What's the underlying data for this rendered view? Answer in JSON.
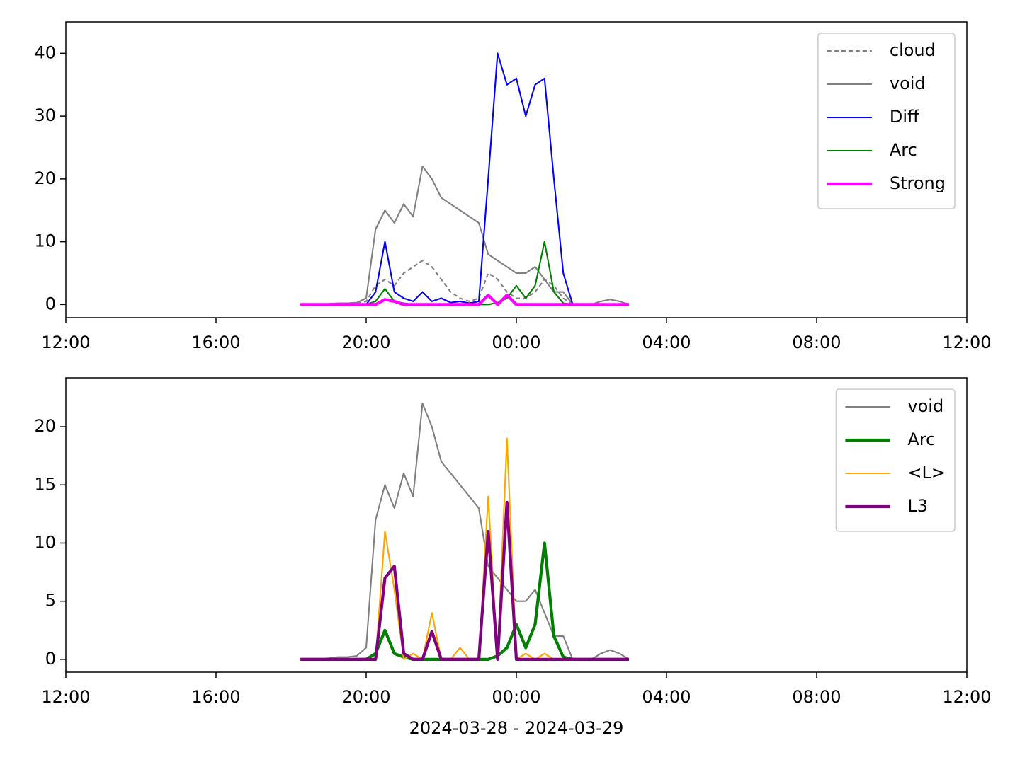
{
  "chart_data": [
    {
      "type": "line",
      "x": [
        "2024-03-28T18:15",
        "2024-03-28T18:30",
        "2024-03-28T18:45",
        "2024-03-28T19:00",
        "2024-03-28T19:15",
        "2024-03-28T19:30",
        "2024-03-28T19:45",
        "2024-03-28T20:00",
        "2024-03-28T20:15",
        "2024-03-28T20:30",
        "2024-03-28T20:45",
        "2024-03-28T21:00",
        "2024-03-28T21:15",
        "2024-03-28T21:30",
        "2024-03-28T21:45",
        "2024-03-28T22:00",
        "2024-03-28T22:15",
        "2024-03-28T22:30",
        "2024-03-28T22:45",
        "2024-03-28T23:00",
        "2024-03-28T23:15",
        "2024-03-28T23:30",
        "2024-03-28T23:45",
        "2024-03-29T00:00",
        "2024-03-29T00:15",
        "2024-03-29T00:30",
        "2024-03-29T00:45",
        "2024-03-29T01:00",
        "2024-03-29T01:15",
        "2024-03-29T01:30",
        "2024-03-29T01:45",
        "2024-03-29T02:00",
        "2024-03-29T02:15",
        "2024-03-29T02:30",
        "2024-03-29T02:45",
        "2024-03-29T03:00"
      ],
      "series": [
        {
          "name": "cloud",
          "color": "#808080",
          "linestyle": "dashed",
          "linewidth": 1.5,
          "values": [
            0,
            0,
            0,
            0,
            0,
            0.1,
            0.2,
            0.5,
            3,
            4,
            3,
            5,
            6,
            7,
            6,
            4,
            2,
            1,
            0.5,
            1,
            5,
            4,
            2,
            1,
            1,
            2,
            4,
            3,
            1,
            0,
            0,
            0,
            0,
            0,
            0,
            0
          ]
        },
        {
          "name": "void",
          "color": "#808080",
          "linestyle": "solid",
          "linewidth": 1.5,
          "values": [
            0,
            0,
            0,
            0.1,
            0.2,
            0.2,
            0.3,
            1,
            12,
            15,
            13,
            16,
            14,
            22,
            20,
            17,
            16,
            15,
            14,
            13,
            8,
            7,
            6,
            5,
            5,
            6,
            4,
            2,
            2,
            0,
            0,
            0,
            0.5,
            0.8,
            0.5,
            0
          ]
        },
        {
          "name": "Diff",
          "color": "#0000ff",
          "linestyle": "solid",
          "linewidth": 1.5,
          "values": [
            0,
            0,
            0,
            0,
            0,
            0,
            0,
            0,
            2,
            10,
            2,
            1,
            0.5,
            2,
            0.5,
            1,
            0.3,
            0.5,
            0.2,
            0.5,
            20,
            40,
            35,
            36,
            30,
            35,
            36,
            20,
            5,
            0,
            0,
            0,
            0,
            0,
            0,
            0
          ]
        },
        {
          "name": "Arc",
          "color": "#008000",
          "linestyle": "solid",
          "linewidth": 1.5,
          "values": [
            0,
            0,
            0,
            0,
            0,
            0,
            0,
            0,
            0.5,
            2.5,
            0.5,
            0.2,
            0,
            0,
            0,
            0,
            0,
            0,
            0,
            0,
            0,
            0.3,
            1,
            3,
            1,
            3,
            10,
            2,
            0.2,
            0,
            0,
            0,
            0,
            0,
            0,
            0
          ]
        },
        {
          "name": "Strong",
          "color": "#ff00ff",
          "linestyle": "solid",
          "linewidth": 3,
          "values": [
            0,
            0,
            0,
            0,
            0,
            0,
            0,
            0,
            0,
            0.8,
            0.5,
            0,
            0,
            0,
            0,
            0,
            0,
            0,
            0,
            0,
            1.5,
            0,
            1.5,
            0,
            0,
            0,
            0,
            0,
            0,
            0,
            0,
            0,
            0,
            0,
            0,
            0
          ]
        }
      ],
      "xlim": [
        "2024-03-28T12:00",
        "2024-03-29T12:00"
      ],
      "xticks": [
        {
          "value": "2024-03-28T12:00",
          "label": "12:00"
        },
        {
          "value": "2024-03-28T16:00",
          "label": "16:00"
        },
        {
          "value": "2024-03-28T20:00",
          "label": "20:00"
        },
        {
          "value": "2024-03-29T00:00",
          "label": "00:00"
        },
        {
          "value": "2024-03-29T04:00",
          "label": "04:00"
        },
        {
          "value": "2024-03-29T08:00",
          "label": "08:00"
        },
        {
          "value": "2024-03-29T12:00",
          "label": "12:00"
        }
      ],
      "ylim": [
        -2.1,
        45
      ],
      "yticks": [
        0,
        10,
        20,
        30,
        40
      ],
      "legend": "upper right",
      "grid": false
    },
    {
      "type": "line",
      "x": [
        "2024-03-28T18:15",
        "2024-03-28T18:30",
        "2024-03-28T18:45",
        "2024-03-28T19:00",
        "2024-03-28T19:15",
        "2024-03-28T19:30",
        "2024-03-28T19:45",
        "2024-03-28T20:00",
        "2024-03-28T20:15",
        "2024-03-28T20:30",
        "2024-03-28T20:45",
        "2024-03-28T21:00",
        "2024-03-28T21:15",
        "2024-03-28T21:30",
        "2024-03-28T21:45",
        "2024-03-28T22:00",
        "2024-03-28T22:15",
        "2024-03-28T22:30",
        "2024-03-28T22:45",
        "2024-03-28T23:00",
        "2024-03-28T23:15",
        "2024-03-28T23:30",
        "2024-03-28T23:45",
        "2024-03-29T00:00",
        "2024-03-29T00:15",
        "2024-03-29T00:30",
        "2024-03-29T00:45",
        "2024-03-29T01:00",
        "2024-03-29T01:15",
        "2024-03-29T01:30",
        "2024-03-29T01:45",
        "2024-03-29T02:00",
        "2024-03-29T02:15",
        "2024-03-29T02:30",
        "2024-03-29T02:45",
        "2024-03-29T03:00"
      ],
      "series": [
        {
          "name": "void",
          "color": "#808080",
          "linestyle": "solid",
          "linewidth": 1.5,
          "values": [
            0,
            0,
            0,
            0.1,
            0.2,
            0.2,
            0.3,
            1,
            12,
            15,
            13,
            16,
            14,
            22,
            20,
            17,
            16,
            15,
            14,
            13,
            8,
            7,
            6,
            5,
            5,
            6,
            4,
            2,
            2,
            0,
            0,
            0,
            0.5,
            0.8,
            0.5,
            0
          ]
        },
        {
          "name": "Arc",
          "color": "#008000",
          "linestyle": "solid",
          "linewidth": 3,
          "values": [
            0,
            0,
            0,
            0,
            0,
            0,
            0,
            0,
            0.5,
            2.5,
            0.5,
            0.2,
            0,
            0,
            0,
            0,
            0,
            0,
            0,
            0,
            0,
            0.3,
            1,
            3,
            1,
            3,
            10,
            2,
            0.2,
            0,
            0,
            0,
            0,
            0,
            0,
            0
          ]
        },
        {
          "name": "<L>",
          "color": "#ffa500",
          "linestyle": "solid",
          "linewidth": 1.5,
          "values": [
            0,
            0,
            0,
            0,
            0,
            0,
            0,
            0,
            0,
            11,
            6,
            0,
            0.5,
            0,
            4,
            0,
            0,
            1,
            0,
            0,
            14,
            0,
            19,
            0,
            0.5,
            0,
            0.5,
            0,
            0,
            0,
            0,
            0,
            0,
            0,
            0,
            0
          ]
        },
        {
          "name": "L3",
          "color": "#800080",
          "linestyle": "solid",
          "linewidth": 3,
          "values": [
            0,
            0,
            0,
            0,
            0,
            0,
            0,
            0,
            0,
            7,
            8,
            0.5,
            0,
            0,
            2.4,
            0,
            0,
            0,
            0,
            0,
            11,
            0,
            13.5,
            0,
            0,
            0,
            0,
            0,
            0,
            0,
            0,
            0,
            0,
            0,
            0,
            0
          ]
        }
      ],
      "xlim": [
        "2024-03-28T12:00",
        "2024-03-29T12:00"
      ],
      "xticks": [
        {
          "value": "2024-03-28T12:00",
          "label": "12:00"
        },
        {
          "value": "2024-03-28T16:00",
          "label": "16:00"
        },
        {
          "value": "2024-03-28T20:00",
          "label": "20:00"
        },
        {
          "value": "2024-03-29T00:00",
          "label": "00:00"
        },
        {
          "value": "2024-03-29T04:00",
          "label": "04:00"
        },
        {
          "value": "2024-03-29T08:00",
          "label": "08:00"
        },
        {
          "value": "2024-03-29T12:00",
          "label": "12:00"
        }
      ],
      "ylim": [
        -1.1,
        24.2
      ],
      "yticks": [
        0,
        5,
        10,
        15,
        20
      ],
      "xlabel": "2024-03-28 - 2024-03-29",
      "legend": "upper right",
      "grid": false
    }
  ]
}
